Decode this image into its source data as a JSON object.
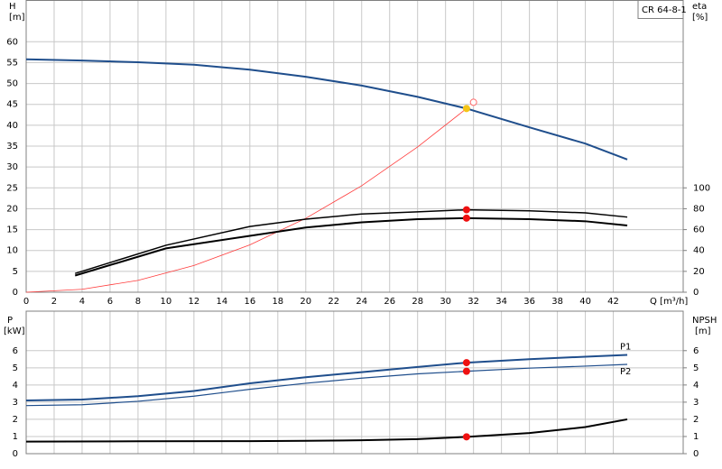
{
  "chart_data": [
    {
      "type": "line",
      "model": "CR 64-8-1",
      "y_label": "H",
      "y_unit": "[m]",
      "y2_label": "eta",
      "y2_unit": "[%]",
      "x_label": "Q [m³/h]",
      "xlim": [
        0,
        47
      ],
      "xticks": [
        0,
        2,
        4,
        6,
        8,
        10,
        12,
        14,
        16,
        18,
        20,
        22,
        24,
        26,
        28,
        30,
        32,
        34,
        36,
        38,
        40,
        42
      ],
      "show_xtick_labels": true,
      "ylim": [
        0,
        70
      ],
      "yticks": [
        0,
        5,
        10,
        15,
        20,
        25,
        30,
        35,
        40,
        45,
        50,
        55,
        60
      ],
      "y2lim": [
        0,
        280
      ],
      "y2ticks": [
        0,
        20,
        40,
        60,
        80,
        100
      ],
      "grid": true,
      "series": [
        {
          "color": "#1f4e8c",
          "width": 2,
          "x": [
            0,
            4,
            8,
            12,
            16,
            20,
            24,
            28,
            31.5,
            36,
            40,
            43
          ],
          "values": [
            55.8,
            55.5,
            55.1,
            54.5,
            53.3,
            51.6,
            49.5,
            46.8,
            44,
            39.5,
            35.6,
            31.8
          ]
        },
        {
          "color": "#ff3b3b",
          "width": 0.8,
          "x": [
            0,
            4,
            8,
            12,
            16,
            20,
            24,
            28,
            31.5
          ],
          "values": [
            0,
            0.71,
            2.84,
            6.4,
            11.35,
            17.7,
            25.5,
            34.8,
            44
          ]
        },
        {
          "color": "#000000",
          "width": 1.5,
          "axis": "y2",
          "x": [
            3.5,
            10,
            16,
            20,
            24,
            28,
            31.5,
            36,
            40,
            43
          ],
          "values": [
            18,
            45,
            63,
            70,
            75,
            77,
            79,
            78,
            76,
            72
          ]
        },
        {
          "color": "#000000",
          "width": 2,
          "axis": "y2",
          "x": [
            3.5,
            10,
            16,
            20,
            24,
            28,
            31.5,
            36,
            40,
            43
          ],
          "values": [
            16,
            42,
            54,
            62,
            67,
            70,
            71,
            70,
            68,
            64
          ]
        }
      ],
      "markers": [
        {
          "x": 31.5,
          "y": 44,
          "color": "#f5c518",
          "style": "filled"
        },
        {
          "x": 32,
          "y": 45.5,
          "color": "#ff6b6b",
          "style": "open"
        },
        {
          "x": 31.5,
          "y": 79,
          "color": "#ee1111",
          "style": "filled",
          "axis": "y2"
        },
        {
          "x": 31.5,
          "y": 71,
          "color": "#ee1111",
          "style": "filled",
          "axis": "y2"
        }
      ]
    },
    {
      "type": "line",
      "y_label": "P",
      "y_unit": "[kW]",
      "y2_label": "NPSH",
      "y2_unit": "[m]",
      "xlim": [
        0,
        47
      ],
      "xticks": [
        0,
        2,
        4,
        6,
        8,
        10,
        12,
        14,
        16,
        18,
        20,
        22,
        24,
        26,
        28,
        30,
        32,
        34,
        36,
        38,
        40,
        42
      ],
      "show_xtick_labels": false,
      "ylim": [
        0,
        8.3
      ],
      "yticks": [
        0,
        1,
        2,
        3,
        4,
        5,
        6
      ],
      "y2lim": [
        0,
        8.3
      ],
      "y2ticks": [
        0,
        1,
        2,
        3,
        4,
        5,
        6
      ],
      "grid": true,
      "series": [
        {
          "name": "P1",
          "color": "#1f4e8c",
          "width": 2,
          "x": [
            0,
            4,
            8,
            12,
            16,
            20,
            24,
            28,
            31.5,
            36,
            40,
            43
          ],
          "values": [
            3.1,
            3.15,
            3.35,
            3.65,
            4.1,
            4.45,
            4.75,
            5.05,
            5.3,
            5.5,
            5.65,
            5.75
          ]
        },
        {
          "name": "P2",
          "color": "#1f4e8c",
          "width": 1.2,
          "x": [
            0,
            4,
            8,
            12,
            16,
            20,
            24,
            28,
            31.5,
            36,
            40,
            43
          ],
          "values": [
            2.8,
            2.85,
            3.05,
            3.35,
            3.75,
            4.1,
            4.4,
            4.65,
            4.8,
            4.98,
            5.1,
            5.2
          ]
        },
        {
          "color": "#000000",
          "width": 2,
          "axis": "y2",
          "x": [
            0,
            8,
            16,
            20,
            24,
            28,
            31.5,
            36,
            40,
            43
          ],
          "values": [
            0.7,
            0.72,
            0.73,
            0.75,
            0.78,
            0.85,
            0.98,
            1.2,
            1.55,
            2.0
          ]
        }
      ],
      "markers": [
        {
          "x": 31.5,
          "y": 5.3,
          "color": "#ee1111",
          "style": "filled"
        },
        {
          "x": 31.5,
          "y": 4.8,
          "color": "#ee1111",
          "style": "filled"
        },
        {
          "x": 31.5,
          "y": 0.98,
          "color": "#ee1111",
          "style": "filled",
          "axis": "y2"
        }
      ]
    }
  ]
}
